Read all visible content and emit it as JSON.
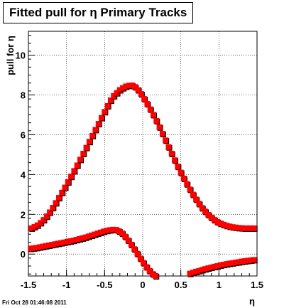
{
  "title": "Fitted pull for η  Primary Tracks",
  "timestamp": "Fri Oct 28 01:46:08 2011",
  "chart_data": {
    "type": "scatter",
    "title": "Fitted pull for η  Primary Tracks",
    "xlabel": "η",
    "ylabel": "pull for η",
    "xlim": [
      -1.5,
      1.5
    ],
    "ylim": [
      -1.1,
      11.2
    ],
    "x_ticks": [
      -1.5,
      -1,
      -0.5,
      0,
      0.5,
      1,
      1.5
    ],
    "x_tick_labels": [
      "-1.5",
      "-1",
      "-0.5",
      "0",
      "0.5",
      "1",
      "1.5"
    ],
    "y_ticks": [
      0,
      2,
      4,
      6,
      8,
      10
    ],
    "y_tick_labels": [
      "0",
      "2",
      "4",
      "6",
      "8",
      "10"
    ],
    "grid": true,
    "colors": {
      "series": "#ff0000",
      "outline": "#000000"
    },
    "series": [
      {
        "name": "",
        "x": [
          -1.46,
          -1.42,
          -1.38,
          -1.34,
          -1.3,
          -1.26,
          -1.22,
          -1.18,
          -1.14,
          -1.1,
          -1.06,
          -1.02,
          -0.98,
          -0.94,
          -0.9,
          -0.86,
          -0.82,
          -0.78,
          -0.74,
          -0.7,
          -0.66,
          -0.62,
          -0.58,
          -0.54,
          -0.5,
          -0.46,
          -0.42,
          -0.38,
          -0.34,
          -0.3,
          -0.26,
          -0.22,
          -0.18,
          -0.14,
          -0.1,
          -0.06,
          -0.02,
          0.02,
          0.06,
          0.1,
          0.14,
          0.18,
          0.22,
          0.26,
          0.3,
          0.34,
          0.38,
          0.42,
          0.46,
          0.5,
          0.54,
          0.58,
          0.62,
          0.66,
          0.7,
          0.74,
          0.78,
          0.82,
          0.86,
          0.9,
          0.94,
          0.98,
          1.02,
          1.06,
          1.1,
          1.14,
          1.18,
          1.22,
          1.26,
          1.3,
          1.34,
          1.38,
          1.42,
          1.46
        ],
        "y": [
          1.3,
          1.37,
          1.45,
          1.57,
          1.72,
          1.9,
          2.1,
          2.33,
          2.57,
          2.83,
          3.09,
          3.35,
          3.62,
          3.9,
          4.18,
          4.46,
          4.75,
          5.05,
          5.35,
          5.65,
          5.95,
          6.25,
          6.55,
          6.85,
          7.15,
          7.45,
          7.73,
          7.95,
          8.1,
          8.25,
          8.35,
          8.43,
          8.47,
          8.48,
          8.4,
          8.25,
          8.05,
          7.8,
          7.55,
          7.28,
          7.0,
          6.7,
          6.38,
          6.05,
          5.72,
          5.38,
          5.05,
          4.72,
          4.4,
          4.1,
          3.8,
          3.52,
          3.25,
          2.99,
          2.75,
          2.53,
          2.32,
          2.14,
          1.98,
          1.84,
          1.72,
          1.62,
          1.54,
          1.48,
          1.43,
          1.39,
          1.36,
          1.34,
          1.32,
          1.31,
          1.3,
          1.3,
          1.3,
          1.3
        ]
      },
      {
        "name": "",
        "x": [
          -1.47,
          -1.43,
          -1.39,
          -1.35,
          -1.31,
          -1.27,
          -1.23,
          -1.19,
          -1.15,
          -1.11,
          -1.07,
          -1.03,
          -0.99,
          -0.95,
          -0.91,
          -0.87,
          -0.83,
          -0.79,
          -0.75,
          -0.71,
          -0.67,
          -0.63,
          -0.59,
          -0.55,
          -0.51,
          -0.47,
          -0.43,
          -0.39,
          -0.35,
          -0.31,
          -0.27,
          -0.23,
          -0.19,
          -0.15,
          -0.11,
          -0.07,
          -0.03,
          0.01,
          0.05,
          0.09,
          0.13,
          0.17
        ],
        "y": [
          0.28,
          0.3,
          0.32,
          0.35,
          0.38,
          0.41,
          0.44,
          0.47,
          0.5,
          0.53,
          0.56,
          0.59,
          0.62,
          0.65,
          0.68,
          0.72,
          0.76,
          0.8,
          0.84,
          0.89,
          0.94,
          0.99,
          1.04,
          1.09,
          1.14,
          1.18,
          1.21,
          1.23,
          1.22,
          1.15,
          1.04,
          0.88,
          0.69,
          0.48,
          0.25,
          0.02,
          -0.22,
          -0.44,
          -0.65,
          -0.84,
          -1.0,
          -1.1
        ]
      },
      {
        "name": "",
        "x": [
          0.62,
          0.66,
          0.7,
          0.74,
          0.78,
          0.82,
          0.86,
          0.9,
          0.94,
          0.98,
          1.02,
          1.06,
          1.1,
          1.14,
          1.18,
          1.22,
          1.26,
          1.3,
          1.34,
          1.38,
          1.42,
          1.46
        ],
        "y": [
          -0.98,
          -0.93,
          -0.88,
          -0.84,
          -0.79,
          -0.75,
          -0.71,
          -0.67,
          -0.63,
          -0.6,
          -0.56,
          -0.53,
          -0.5,
          -0.47,
          -0.45,
          -0.42,
          -0.4,
          -0.37,
          -0.35,
          -0.33,
          -0.31,
          -0.29
        ]
      }
    ]
  }
}
